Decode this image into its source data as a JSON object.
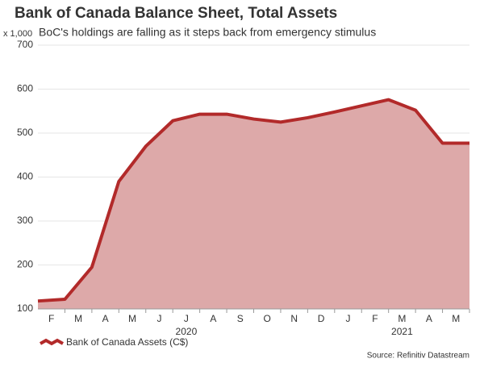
{
  "chart_data": {
    "type": "area",
    "title": "Bank of Canada Balance Sheet, Total Assets",
    "subtitle": "BoC's holdings are falling as it steps back from emergency stimulus",
    "y_unit": "x 1,000",
    "categories": [
      null,
      "F",
      "M",
      "A",
      "M",
      "J",
      "J",
      "A",
      "S",
      "O",
      "N",
      "D",
      "J",
      "F",
      "M",
      "A",
      "M"
    ],
    "years": [
      "2020",
      "2021"
    ],
    "series": [
      {
        "name": "Bank of Canada Assets (C$)",
        "color": "#b22a2a",
        "fill": "#dda9a9",
        "values": [
          118,
          122,
          195,
          390,
          470,
          528,
          543,
          543,
          532,
          525,
          535,
          548,
          562,
          576,
          552,
          477,
          477
        ]
      }
    ],
    "ylim": [
      100,
      700
    ],
    "yticks": [
      100,
      200,
      300,
      400,
      500,
      600,
      700
    ],
    "grid": true,
    "source": "Source: Refinitiv Datastream"
  }
}
